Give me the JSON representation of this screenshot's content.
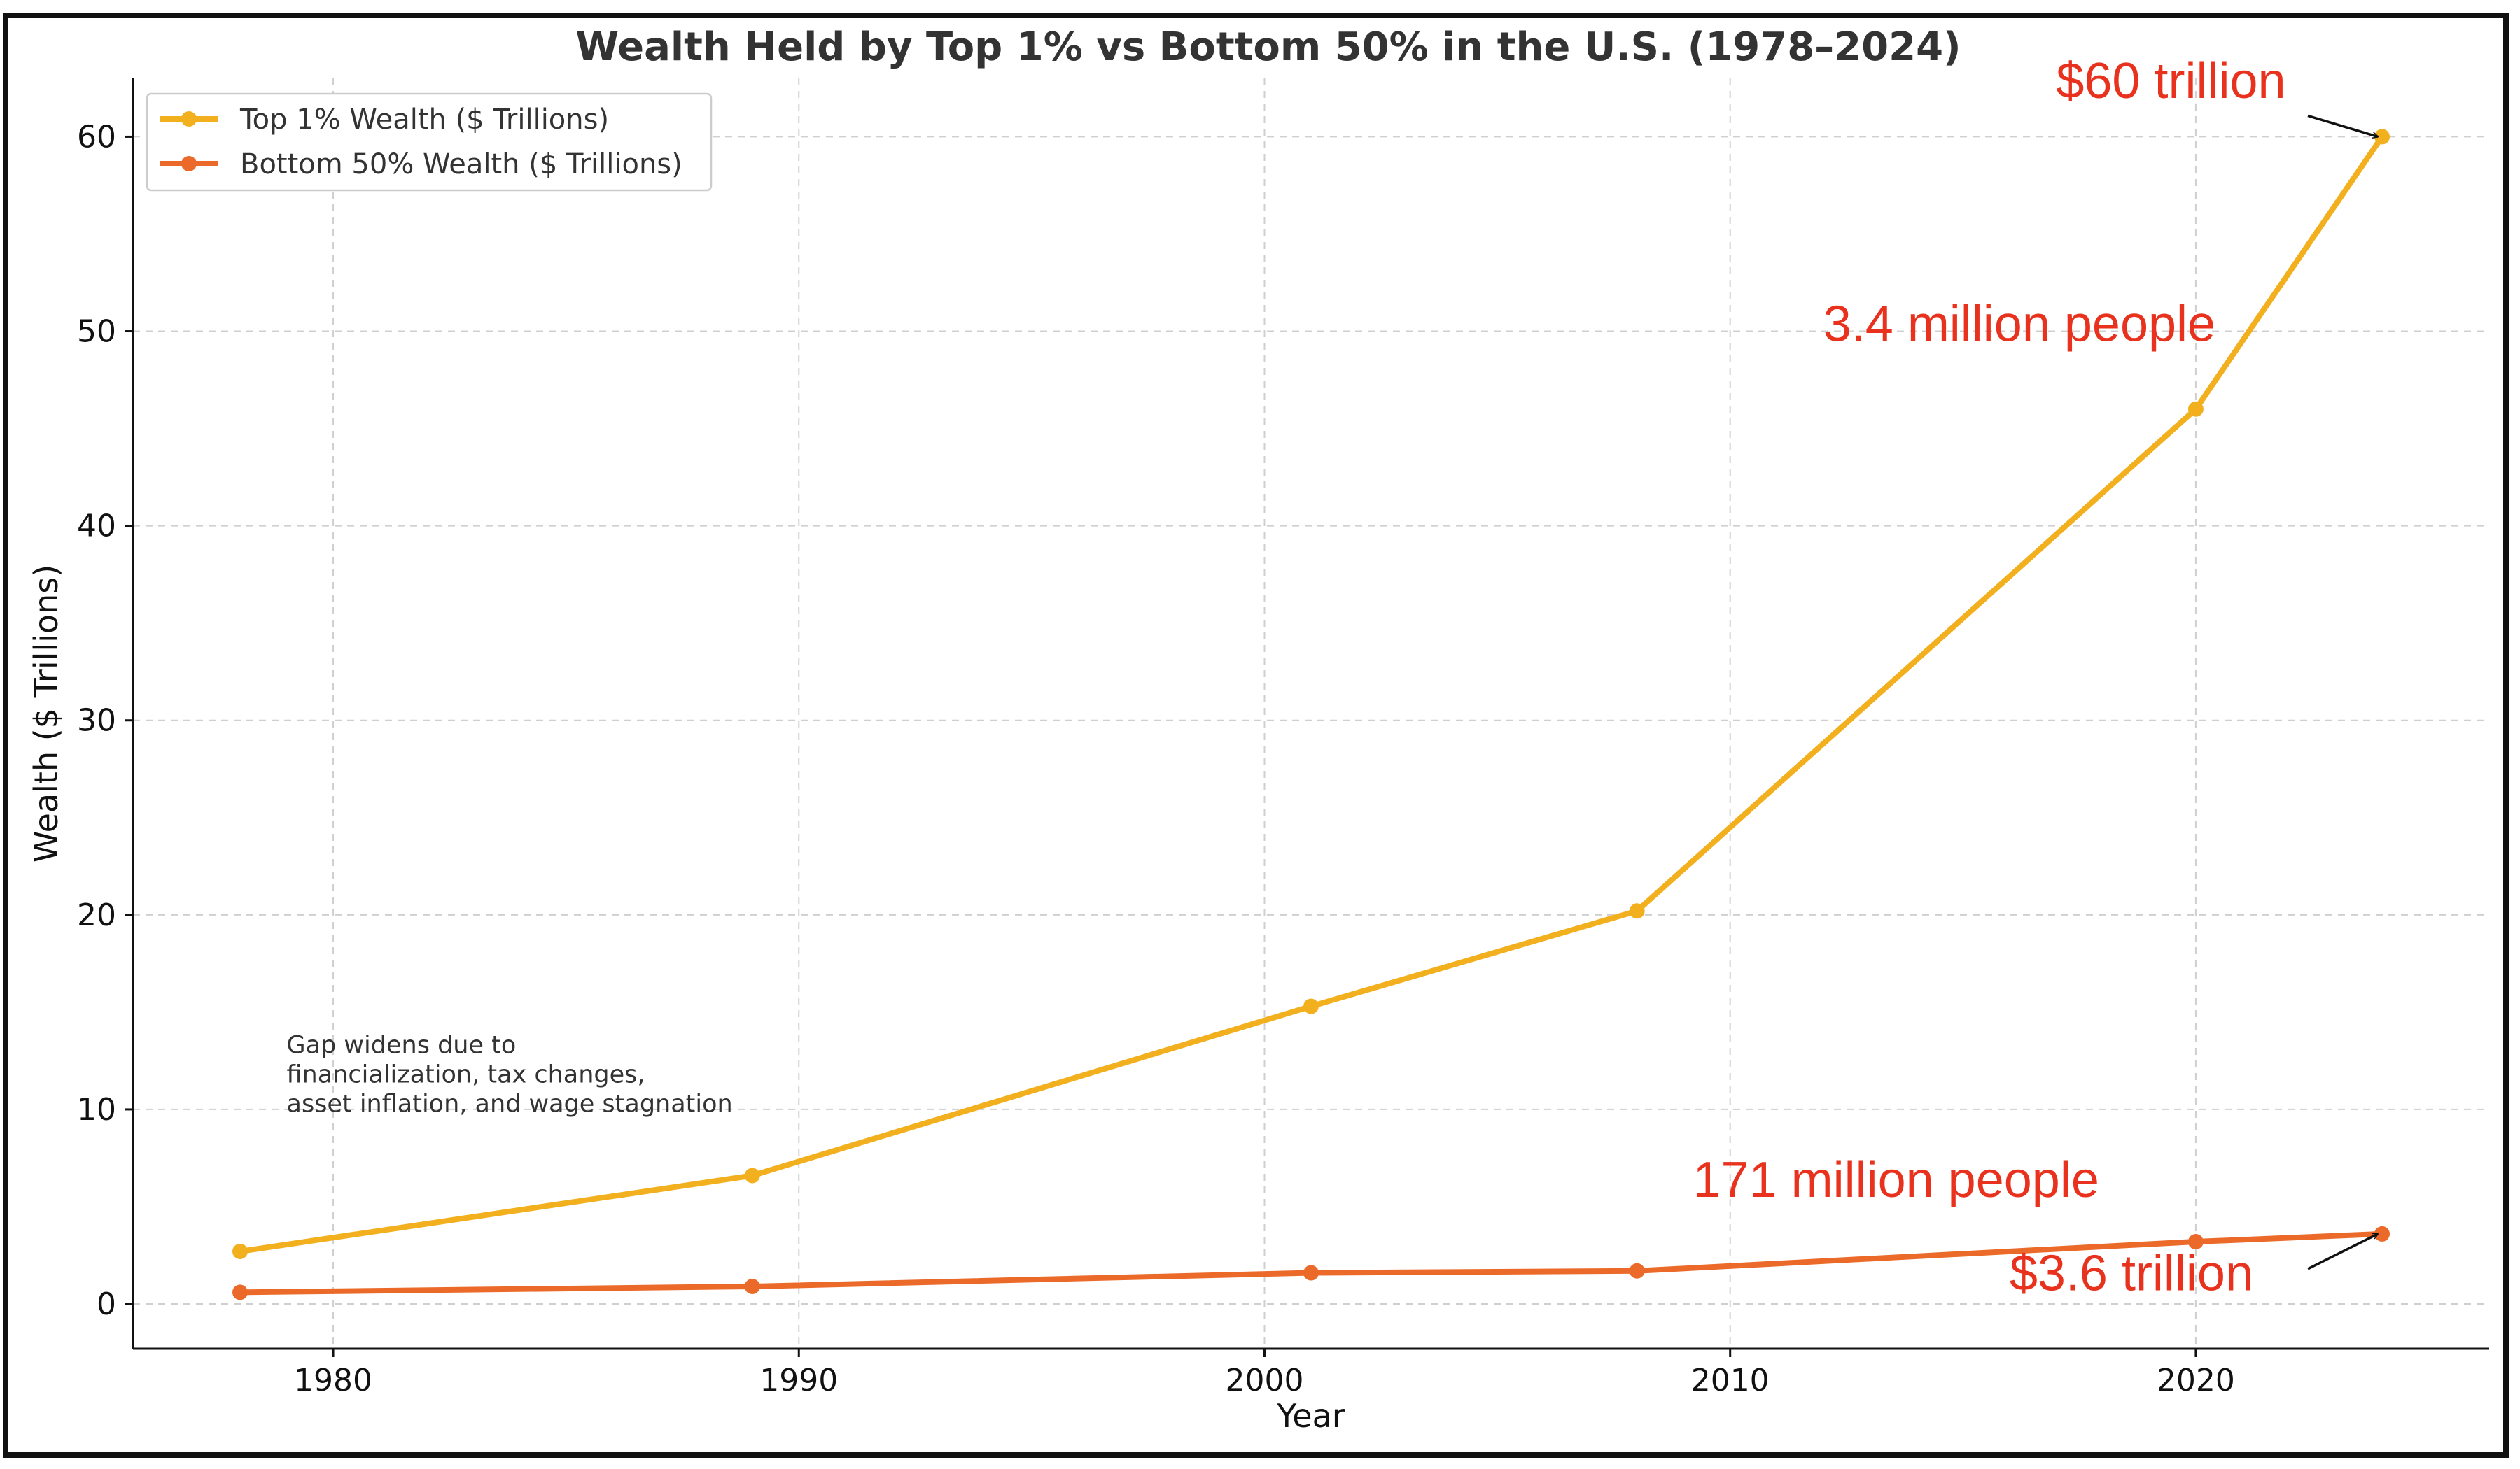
{
  "chart_data": {
    "type": "line",
    "title": "Wealth Held by Top 1% vs Bottom 50% in the U.S. (1978–2024)",
    "xlabel": "Year",
    "ylabel": "Wealth ($ Trillions)",
    "xlim": [
      1975.7,
      2026.3
    ],
    "ylim": [
      -2.3,
      63
    ],
    "xticks": [
      1980,
      1990,
      2000,
      2010,
      2020
    ],
    "yticks": [
      0,
      10,
      20,
      30,
      40,
      50,
      60
    ],
    "grid": true,
    "legend_position": "top-left",
    "series": [
      {
        "name": "Top 1% Wealth ($ Trillions)",
        "color": "#F2B01E",
        "x": [
          1978,
          1989,
          2001,
          2008,
          2020,
          2024
        ],
        "y": [
          2.7,
          6.6,
          15.3,
          20.2,
          46,
          60
        ]
      },
      {
        "name": "Bottom 50% Wealth ($ Trillions)",
        "color": "#EB6A2A",
        "x": [
          1978,
          1989,
          2001,
          2008,
          2020,
          2024
        ],
        "y": [
          0.6,
          0.9,
          1.6,
          1.7,
          3.2,
          3.6
        ]
      }
    ],
    "note": {
      "lines": [
        "Gap widens due to",
        "financialization, tax changes,",
        "asset inflation, and wage stagnation"
      ],
      "x": 1979,
      "y": 12.9
    },
    "annotations": [
      {
        "text": "$60 trillion",
        "x": 2017,
        "y": 62,
        "color": "#E8321E",
        "arrow_to": [
          2024,
          60
        ]
      },
      {
        "text": "3.4 million people",
        "x": 2012,
        "y": 49.5,
        "color": "#E8321E"
      },
      {
        "text": "171 million people",
        "x": 2009.2,
        "y": 5.5,
        "color": "#E8321E"
      },
      {
        "text": "$3.6 trillion",
        "x": 2016,
        "y": 0.7,
        "color": "#E8321E",
        "arrow_to": [
          2024,
          3.6
        ]
      }
    ]
  }
}
